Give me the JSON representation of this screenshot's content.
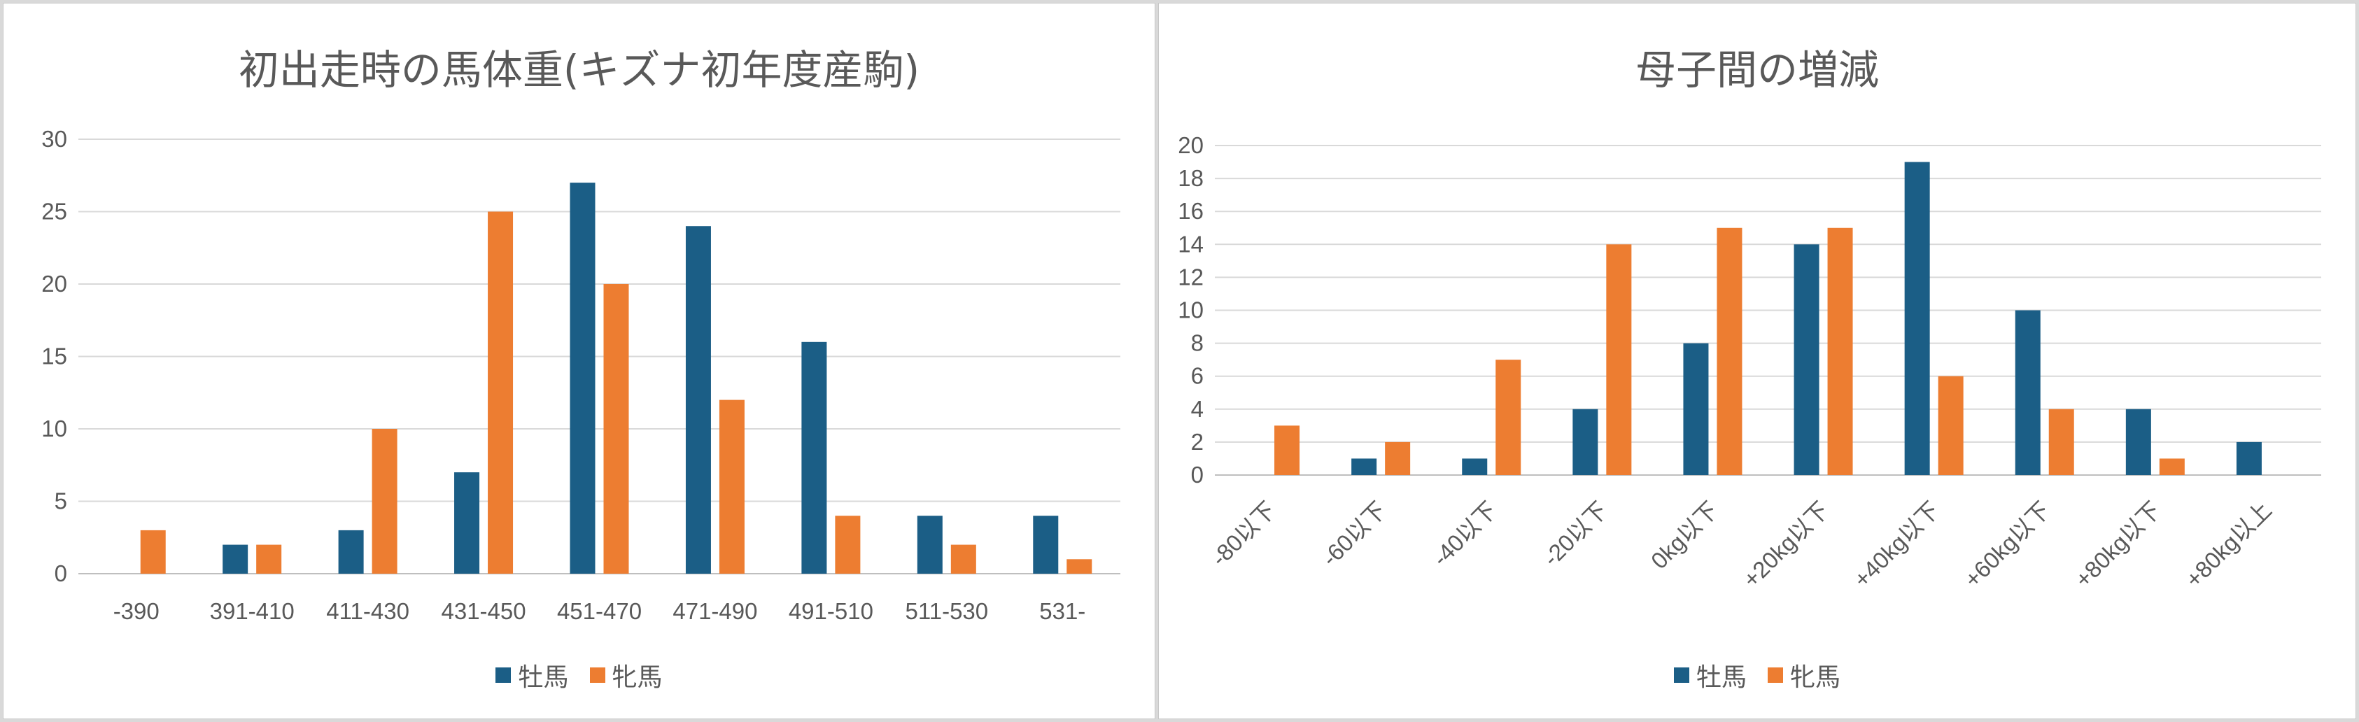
{
  "colors": {
    "series1": "#1b5e86",
    "series2": "#ed7d31",
    "grid": "#d9d9d9",
    "text": "#595959"
  },
  "chart_data": [
    {
      "type": "bar",
      "title": "初出走時の馬体重(キズナ初年度産駒)",
      "categories": [
        "-390",
        "391-410",
        "411-430",
        "431-450",
        "451-470",
        "471-490",
        "491-510",
        "511-530",
        "531-"
      ],
      "series": [
        {
          "name": "牡馬",
          "values": [
            0,
            2,
            3,
            7,
            27,
            24,
            16,
            4,
            4
          ]
        },
        {
          "name": "牝馬",
          "values": [
            3,
            2,
            10,
            25,
            20,
            12,
            4,
            2,
            1
          ]
        }
      ],
      "ylim": [
        0,
        30
      ],
      "yticks": [
        0,
        5,
        10,
        15,
        20,
        25,
        30
      ],
      "xlabel": "",
      "ylabel": "",
      "grid": true,
      "legend": "bottom"
    },
    {
      "type": "bar",
      "title": "母子間の増減",
      "categories": [
        "-80以下",
        "-60以下",
        "-40以下",
        "-20以下",
        "0kg以下",
        "+20kg以下",
        "+40kg以下",
        "+60kg以下",
        "+80kg以下",
        "+80kg以上"
      ],
      "series": [
        {
          "name": "牡馬",
          "values": [
            0,
            1,
            1,
            4,
            8,
            14,
            19,
            10,
            4,
            2
          ]
        },
        {
          "name": "牝馬",
          "values": [
            3,
            2,
            7,
            14,
            15,
            15,
            6,
            4,
            1,
            0
          ]
        }
      ],
      "ylim": [
        0,
        20
      ],
      "yticks": [
        0,
        2,
        4,
        6,
        8,
        10,
        12,
        14,
        16,
        18,
        20
      ],
      "xlabel": "",
      "ylabel": "",
      "grid": true,
      "legend": "bottom"
    }
  ]
}
